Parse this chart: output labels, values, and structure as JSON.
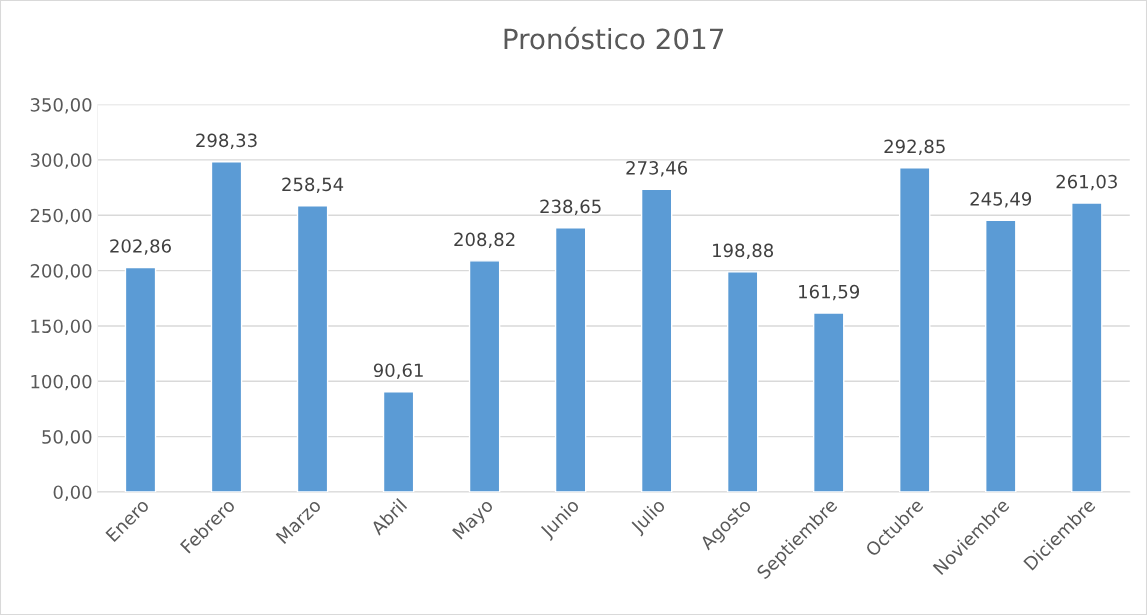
{
  "chart_data": {
    "type": "bar",
    "title": "Pronóstico 2017",
    "categories": [
      "Enero",
      "Febrero",
      "Marzo",
      "Abril",
      "Mayo",
      "Junio",
      "Julio",
      "Agosto",
      "Septiembre",
      "Octubre",
      "Noviembre",
      "Diciembre"
    ],
    "values": [
      202.86,
      298.33,
      258.54,
      90.61,
      208.82,
      238.65,
      273.46,
      198.88,
      161.59,
      292.85,
      245.49,
      261.03
    ],
    "value_labels": [
      "202,86",
      "298,33",
      "258,54",
      "90,61",
      "208,82",
      "238,65",
      "273,46",
      "198,88",
      "161,59",
      "292,85",
      "245,49",
      "261,03"
    ],
    "color": "#5b9bd5",
    "ylim": [
      0,
      350
    ],
    "yticks": [
      {
        "value": 0,
        "label": "0,00"
      },
      {
        "value": 50,
        "label": "50,00"
      },
      {
        "value": 100,
        "label": "100,00"
      },
      {
        "value": 150,
        "label": "150,00"
      },
      {
        "value": 200,
        "label": "200,00"
      },
      {
        "value": 250,
        "label": "250,00"
      },
      {
        "value": 300,
        "label": "300,00"
      },
      {
        "value": 350,
        "label": "350,00"
      }
    ],
    "grid": "y",
    "legend": false
  }
}
